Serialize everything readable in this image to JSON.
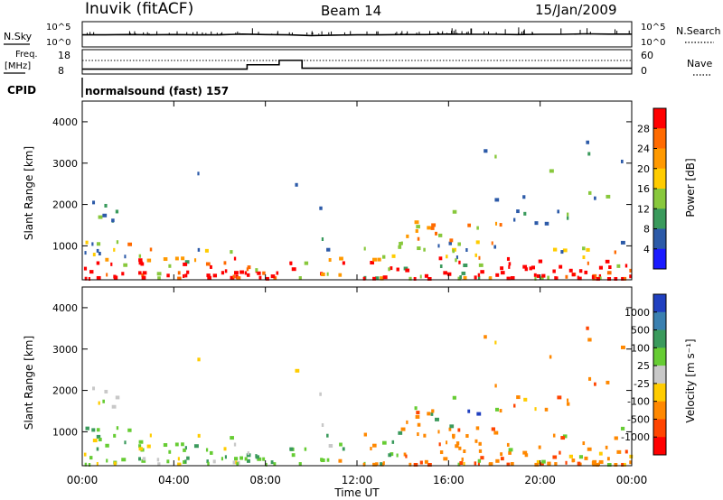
{
  "header": {
    "station": "Inuvik (fitACF)",
    "beam": "Beam 14",
    "date": "15/Jan/2009"
  },
  "panel_labels": {
    "nsky": "N.Sky",
    "freq_line1": "Freq.",
    "freq_line2": "[MHz]",
    "cpid": "CPID",
    "nsearch": "N.Search",
    "nave": "Nave",
    "cpid_text": "normalsound (fast)  157"
  },
  "chart_data": [
    {
      "type": "line",
      "name": "noise",
      "yticks_left": [
        "10^5",
        "10^0"
      ],
      "yticks_right": [
        "10^5",
        "10^0"
      ],
      "series": [
        {
          "name": "N.Sky",
          "style": "solid"
        },
        {
          "name": "N.Search",
          "style": "dotted"
        }
      ],
      "x_hours": [
        0,
        1,
        2,
        3,
        4,
        5,
        6,
        7,
        8,
        9,
        10,
        11,
        12,
        13,
        14,
        15,
        16,
        17,
        18,
        19,
        20,
        21,
        22,
        23,
        24
      ],
      "nsky_level": [
        0.55,
        0.55,
        0.56,
        0.55,
        0.56,
        0.55,
        0.55,
        0.58,
        0.56,
        0.55,
        0.52,
        0.54,
        0.55,
        0.55,
        0.56,
        0.56,
        0.58,
        0.57,
        0.57,
        0.56,
        0.57,
        0.57,
        0.59,
        0.58,
        0.58
      ]
    },
    {
      "type": "line",
      "name": "frequency-nave",
      "yticks_left": [
        "18",
        "8"
      ],
      "yticks_right": [
        "60",
        "0"
      ],
      "freq_steps": [
        {
          "x0": 0.0,
          "x1": 7.2,
          "mhz": 10.0
        },
        {
          "x0": 7.2,
          "x1": 8.6,
          "mhz": 11.8
        },
        {
          "x0": 8.6,
          "x1": 9.6,
          "mhz": 13.6
        },
        {
          "x0": 9.6,
          "x1": 24.0,
          "mhz": 10.4
        }
      ],
      "nave_level": 32,
      "series": [
        {
          "name": "Freq.",
          "style": "solid"
        },
        {
          "name": "Nave",
          "style": "dotted"
        }
      ]
    },
    {
      "type": "heatmap",
      "name": "power",
      "ylabel": "Slant Range [km]",
      "ylim": [
        180,
        4500
      ],
      "yticks": [
        1000,
        2000,
        3000,
        4000
      ],
      "xlim": [
        0,
        24
      ],
      "colorbar_label": "Power [dB]",
      "colorbar_ticks": [
        "28",
        "24",
        "20",
        "16",
        "12",
        "8",
        "4"
      ],
      "colorbar_colors": [
        "#ff0000",
        "#ff6a00",
        "#ff9900",
        "#ffcc00",
        "#88c83c",
        "#3a9a5c",
        "#2c5aa8",
        "#1a1aff"
      ]
    },
    {
      "type": "heatmap",
      "name": "velocity",
      "ylabel": "Slant Range [km]",
      "ylim": [
        180,
        4500
      ],
      "yticks": [
        1000,
        2000,
        3000,
        4000
      ],
      "xlim": [
        0,
        24
      ],
      "xticks": [
        "00:00",
        "04:00",
        "08:00",
        "12:00",
        "16:00",
        "20:00",
        "00:00"
      ],
      "xlabel": "Time UT",
      "colorbar_label": "Velocity [m s⁻¹]",
      "colorbar_ticks": [
        "1000",
        "500",
        "100",
        "25",
        "-25",
        "-100",
        "-500",
        "-1000"
      ],
      "colorbar_colors": [
        "#2040c0",
        "#3a80b0",
        "#3a9a5c",
        "#66cc33",
        "#c8c8c8",
        "#ffcc00",
        "#ff8800",
        "#ff4400",
        "#ff0000"
      ]
    }
  ]
}
